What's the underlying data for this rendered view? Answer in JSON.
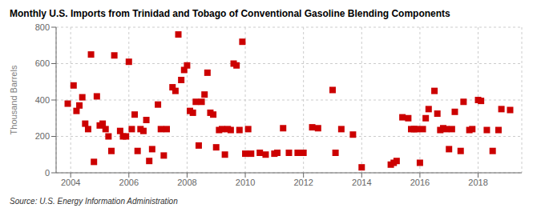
{
  "chart_data": {
    "type": "scatter",
    "title": "Monthly U.S. Imports from Trinidad and Tobago of Conventional Gasoline Blending Components",
    "ylabel": "Thousand Barrels",
    "source": "Source: U.S. Energy Information Administration",
    "color": "#cc0000",
    "marker": "square",
    "grid": true,
    "xlim": [
      2003.5,
      2019.5
    ],
    "ylim": [
      0,
      800
    ],
    "yticks": [
      0,
      200,
      400,
      600,
      800
    ],
    "xticks": [
      2004,
      2006,
      2008,
      2010,
      2012,
      2014,
      2016,
      2018
    ],
    "x": [
      2003.9,
      2004.1,
      2004.2,
      2004.3,
      2004.4,
      2004.5,
      2004.6,
      2004.7,
      2004.8,
      2004.9,
      2005.0,
      2005.1,
      2005.2,
      2005.3,
      2005.4,
      2005.5,
      2005.7,
      2005.8,
      2005.9,
      2006.0,
      2006.1,
      2006.2,
      2006.3,
      2006.4,
      2006.5,
      2006.6,
      2006.7,
      2006.8,
      2007.0,
      2007.1,
      2007.2,
      2007.3,
      2007.5,
      2007.6,
      2007.7,
      2007.8,
      2007.9,
      2008.0,
      2008.1,
      2008.2,
      2008.3,
      2008.4,
      2008.5,
      2008.6,
      2008.7,
      2008.8,
      2008.9,
      2009.0,
      2009.1,
      2009.2,
      2009.3,
      2009.4,
      2009.5,
      2009.6,
      2009.7,
      2009.8,
      2009.9,
      2010.0,
      2010.1,
      2010.2,
      2010.5,
      2010.7,
      2011.0,
      2011.1,
      2011.3,
      2011.5,
      2011.8,
      2012.0,
      2012.3,
      2012.5,
      2013.0,
      2013.1,
      2013.3,
      2013.7,
      2014.0,
      2015.0,
      2015.1,
      2015.2,
      2015.4,
      2015.6,
      2015.7,
      2015.8,
      2015.9,
      2016.0,
      2016.1,
      2016.2,
      2016.3,
      2016.5,
      2016.6,
      2016.7,
      2016.8,
      2016.9,
      2017.0,
      2017.1,
      2017.2,
      2017.4,
      2017.5,
      2017.7,
      2017.8,
      2018.0,
      2018.1,
      2018.3,
      2018.5,
      2018.7,
      2018.8,
      2019.1
    ],
    "values": [
      380,
      480,
      340,
      370,
      415,
      270,
      240,
      650,
      60,
      420,
      260,
      270,
      240,
      200,
      120,
      645,
      230,
      200,
      200,
      610,
      240,
      320,
      120,
      240,
      230,
      290,
      65,
      130,
      375,
      240,
      95,
      240,
      470,
      450,
      760,
      510,
      565,
      590,
      340,
      330,
      390,
      150,
      390,
      430,
      550,
      330,
      320,
      140,
      235,
      240,
      100,
      240,
      235,
      600,
      590,
      235,
      720,
      105,
      240,
      105,
      110,
      100,
      105,
      110,
      245,
      110,
      110,
      110,
      250,
      245,
      455,
      110,
      240,
      210,
      30,
      45,
      55,
      65,
      305,
      300,
      240,
      240,
      240,
      55,
      240,
      300,
      350,
      450,
      325,
      235,
      245,
      240,
      130,
      240,
      335,
      120,
      390,
      235,
      240,
      400,
      395,
      235,
      120,
      235,
      350,
      345
    ]
  }
}
